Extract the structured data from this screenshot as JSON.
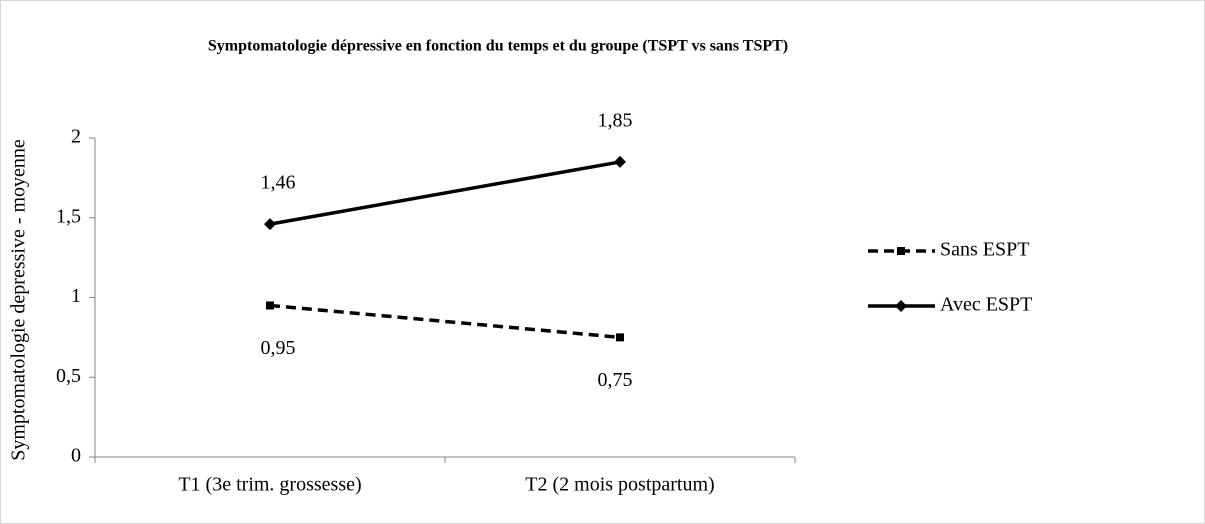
{
  "chart_data": {
    "type": "line",
    "title": "Symptomatologie dépressive en fonction du temps et du groupe (TSPT vs sans TSPT)",
    "y_label": "Symptomatologie depressive - moyenne",
    "categories": [
      "T1 (3e trim. grossesse)",
      "T2 (2 mois postpartum)"
    ],
    "series": [
      {
        "name": "Sans ESPT",
        "color": "#000000",
        "dash": "dashed",
        "marker": "square",
        "values": [
          0.95,
          0.75
        ],
        "value_labels": [
          "0,95",
          "0,75"
        ]
      },
      {
        "name": "Avec ESPT",
        "color": "#000000",
        "dash": "solid",
        "marker": "diamond",
        "values": [
          1.46,
          1.85
        ],
        "value_labels": [
          "1,46",
          "1,85"
        ]
      }
    ],
    "ylim": [
      0,
      2
    ],
    "yticks": [
      0,
      {
        "value": 0.5,
        "label": "0,5"
      },
      1,
      {
        "value": 1.5,
        "label": "1,5"
      },
      2
    ],
    "grid": false,
    "legend": "right"
  }
}
